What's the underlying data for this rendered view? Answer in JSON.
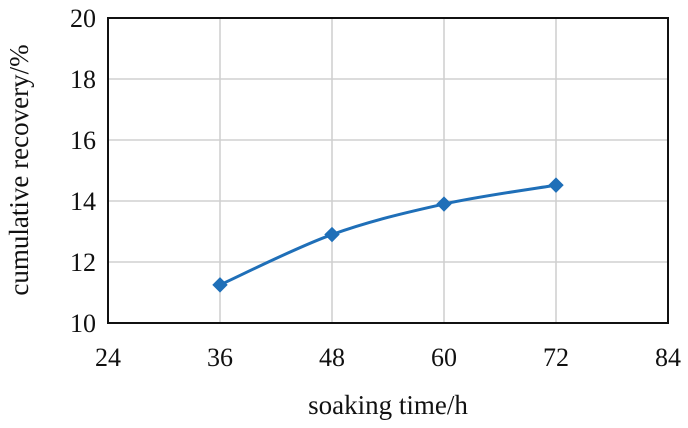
{
  "chart_data": {
    "type": "line",
    "title": "",
    "xlabel": "soaking time/h",
    "ylabel": "cumulative recovery/%",
    "xlim": [
      24,
      84
    ],
    "ylim": [
      10,
      20
    ],
    "xticks": [
      24,
      36,
      48,
      60,
      72,
      84
    ],
    "yticks": [
      10,
      12,
      14,
      16,
      18,
      20
    ],
    "grid": true,
    "smooth": true,
    "marker": "diamond",
    "series": [
      {
        "color": "#1f6fb8",
        "x": [
          36,
          48,
          60,
          72
        ],
        "y": [
          11.25,
          12.9,
          13.9,
          14.52
        ]
      }
    ]
  }
}
